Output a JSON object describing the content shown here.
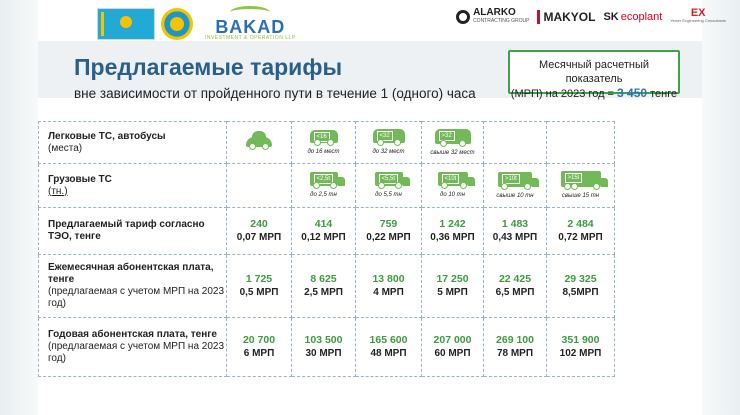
{
  "header": {
    "bakad_name": "BAKAD",
    "bakad_tagline": "INVESTMENT & OPERATION LLP",
    "alarko_name": "ALARKO",
    "alarko_tag": "CONTRACTING GROUP",
    "makyol_name": "MAKYOL",
    "sk_bold": "SK",
    "sk_rest": "ecoplant",
    "ex_mark": "EX",
    "ex_tag": "Yenex Engineering Consultants"
  },
  "title": "Предлагаемые тарифы",
  "subtitle": "вне зависимости от пройденного пути в течение 1 (одного) часа",
  "mrp_box": {
    "line1": "Месячный расчетный показатель",
    "line2_prefix": "(МРП) на 2023 год =",
    "value": "3 450",
    "unit": "тенге"
  },
  "rows": {
    "passenger": {
      "label": "Легковые ТС, автобусы",
      "sub": "(места)",
      "captions": [
        "",
        "до 16 мест",
        "до 32 мест",
        "свыше 32 мест",
        "",
        ""
      ],
      "badges": [
        "",
        "<16",
        "<32",
        ">32",
        "",
        ""
      ]
    },
    "cargo": {
      "label": "Грузовые ТС",
      "sub": "(тн.)",
      "captions": [
        "",
        "до 2,5 тн",
        "до 5,5 тн",
        "до 10 тн",
        "свыше 10 тн",
        "свыше 15 тн"
      ],
      "badges": [
        "",
        "<2,5t",
        "<5,5t",
        "<10t",
        ">10t",
        ">15t"
      ]
    },
    "tariff": {
      "label": "Предлагаемый тариф согласно ТЭО, тенге",
      "values": [
        "240",
        "414",
        "759",
        "1 242",
        "1 483",
        "2 484"
      ],
      "mrp": [
        "0,07 МРП",
        "0,12 МРП",
        "0,22 МРП",
        "0,36 МРП",
        "0,43 МРП",
        "0,72 МРП"
      ]
    },
    "monthly": {
      "label": "Ежемесячная абонентская плата, тенге",
      "note": "(предлагаемая с учетом МРП на 2023 год)",
      "values": [
        "1 725",
        "8 625",
        "13 800",
        "17 250",
        "22 425",
        "29 325"
      ],
      "mrp": [
        "0,5 МРП",
        "2,5 МРП",
        "4 МРП",
        "5 МРП",
        "6,5 МРП",
        "8,5МРП"
      ]
    },
    "annual": {
      "label": "Годовая абонентская плата, тенге",
      "note": "(предлагаемая с учетом МРП на 2023 год)",
      "values": [
        "20 700",
        "103 500",
        "165 600",
        "207 000",
        "269 100",
        "351 900"
      ],
      "mrp": [
        "6 МРП",
        "30 МРП",
        "48 МРП",
        "60 МРП",
        "78 МРП",
        "102 МРП"
      ]
    }
  },
  "colors": {
    "accent_green": "#3e9b3e",
    "title_blue": "#2a5f8c",
    "value_blue": "#2d72b8",
    "icon_green": "#72ba57"
  }
}
